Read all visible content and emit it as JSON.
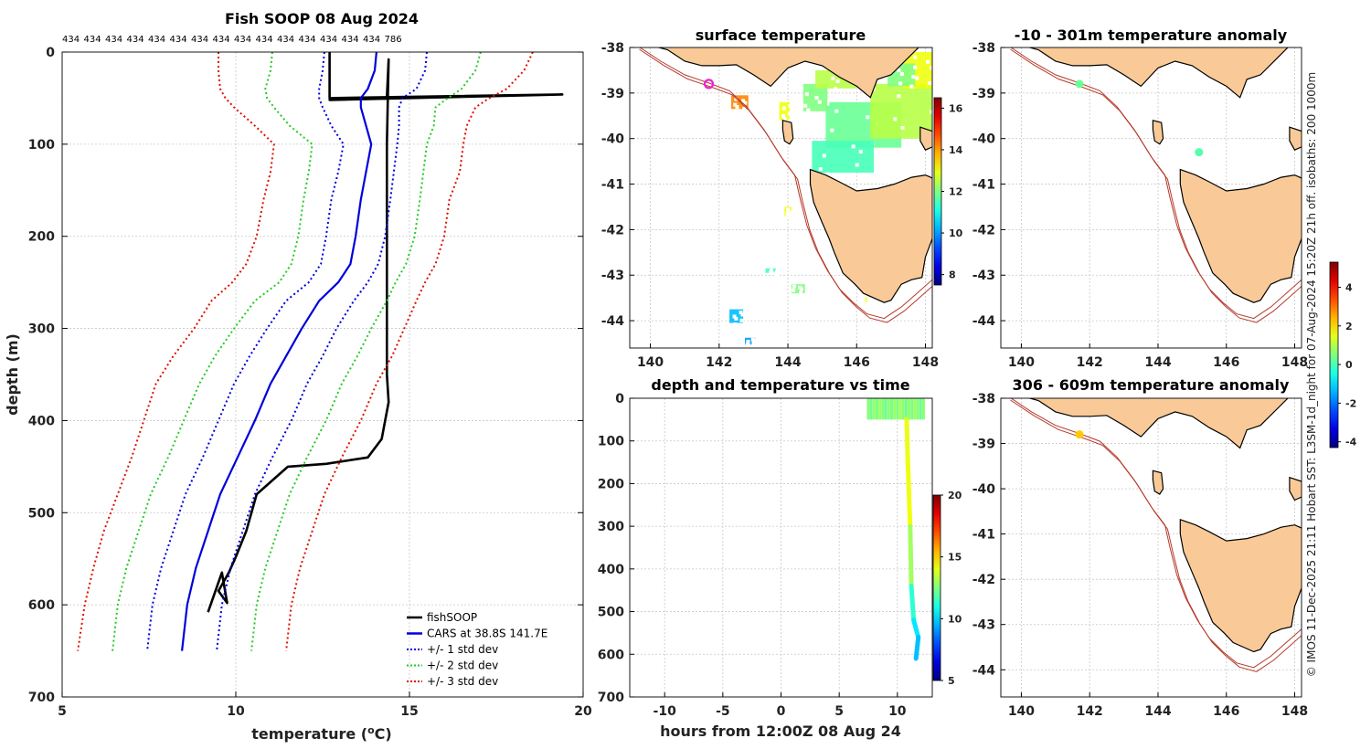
{
  "figure": {
    "credit": "© IMOS 11-Dec-2025 21:11 Hobart SST: L3SM-1d_night for 07-Aug-2024 15:20Z 21h off. isobaths: 200  1000m"
  },
  "colors": {
    "fishSOOP": "#000000",
    "cars": "#0000dd",
    "std1": "#0000dd",
    "std2": "#22cc22",
    "std3": "#dd1100",
    "land": "#f9ca97",
    "isobath": "#b53a2c"
  },
  "chart_data": [
    {
      "id": "profile",
      "type": "line",
      "title": "Fish SOOP 08 Aug 2024",
      "xlabel": "temperature (°C)",
      "xlabel_prefix": "temperature (",
      "xlabel_sup": "o",
      "xlabel_suffix": "C)",
      "ylabel": "depth (m)",
      "xlim": [
        5,
        20
      ],
      "ylim": [
        0,
        700
      ],
      "y_reversed": true,
      "xticks": [
        "5",
        "10",
        "15",
        "20"
      ],
      "yticks": [
        "0",
        "100",
        "200",
        "300",
        "400",
        "500",
        "600",
        "700"
      ],
      "top_counts": [
        "434",
        "434",
        "434",
        "434",
        "434",
        "434",
        "434",
        "434",
        "434",
        "434",
        "434",
        "434",
        "434",
        "434",
        "434",
        "786"
      ],
      "legend": [
        "fishSOOP",
        "CARS at 38.8S 141.7E",
        "+/- 1 std dev",
        "+/- 2 std dev",
        "+/- 3 std dev"
      ],
      "series": [
        {
          "name": "fishSOOP",
          "points": [
            [
              12.7,
              0
            ],
            [
              12.7,
              50
            ],
            [
              19.4,
              46
            ],
            [
              12.7,
              52
            ],
            [
              14.35,
              49
            ],
            [
              14.4,
              8
            ],
            [
              14.35,
              100
            ],
            [
              14.35,
              200
            ],
            [
              14.35,
              300
            ],
            [
              14.35,
              350
            ],
            [
              14.4,
              380
            ],
            [
              14.3,
              400
            ],
            [
              14.2,
              420
            ],
            [
              13.8,
              440
            ],
            [
              12.6,
              447
            ],
            [
              11.5,
              450
            ],
            [
              10.6,
              480
            ],
            [
              10.3,
              520
            ],
            [
              10.0,
              548
            ],
            [
              9.8,
              565
            ],
            [
              9.5,
              585
            ],
            [
              9.75,
              598
            ],
            [
              9.6,
              565
            ],
            [
              9.2,
              608
            ]
          ]
        },
        {
          "name": "CARS",
          "depth": [
            0,
            20,
            40,
            50,
            60,
            80,
            100,
            130,
            160,
            200,
            230,
            250,
            270,
            300,
            330,
            360,
            400,
            440,
            480,
            520,
            560,
            600,
            650
          ],
          "values": [
            14.05,
            14.0,
            13.8,
            13.6,
            13.6,
            13.75,
            13.9,
            13.75,
            13.6,
            13.45,
            13.3,
            12.95,
            12.4,
            11.9,
            11.45,
            11.0,
            10.55,
            10.05,
            9.55,
            9.2,
            8.85,
            8.6,
            8.45
          ]
        },
        {
          "name": "+1 std",
          "depth": [
            0,
            20,
            40,
            50,
            60,
            80,
            100,
            130,
            160,
            200,
            230,
            250,
            270,
            300,
            330,
            360,
            400,
            440,
            480,
            520,
            560,
            600,
            650
          ],
          "values": [
            15.5,
            15.45,
            15.2,
            14.8,
            14.7,
            14.7,
            14.65,
            14.55,
            14.45,
            14.3,
            14.1,
            13.8,
            13.4,
            12.9,
            12.5,
            12.05,
            11.6,
            11.05,
            10.55,
            10.2,
            9.85,
            9.6,
            9.45
          ]
        },
        {
          "name": "-1 std",
          "depth": [
            0,
            20,
            40,
            50,
            60,
            80,
            100,
            130,
            160,
            200,
            230,
            250,
            270,
            300,
            330,
            360,
            400,
            440,
            480,
            520,
            560,
            600,
            650
          ],
          "values": [
            12.55,
            12.5,
            12.4,
            12.4,
            12.5,
            12.75,
            13.1,
            12.95,
            12.75,
            12.6,
            12.45,
            12.1,
            11.45,
            10.9,
            10.4,
            9.95,
            9.5,
            9.05,
            8.55,
            8.2,
            7.85,
            7.6,
            7.45
          ]
        },
        {
          "name": "+2 std",
          "depth": [
            0,
            20,
            40,
            50,
            60,
            80,
            100,
            130,
            160,
            200,
            230,
            250,
            270,
            300,
            330,
            360,
            400,
            440,
            480,
            520,
            560,
            600,
            650
          ],
          "values": [
            17.05,
            16.9,
            16.5,
            16.1,
            15.75,
            15.7,
            15.5,
            15.4,
            15.3,
            15.15,
            14.9,
            14.6,
            14.35,
            13.9,
            13.5,
            13.05,
            12.6,
            12.05,
            11.55,
            11.2,
            10.85,
            10.6,
            10.45
          ]
        },
        {
          "name": "-2 std",
          "depth": [
            0,
            20,
            40,
            50,
            60,
            80,
            100,
            130,
            160,
            200,
            230,
            250,
            270,
            300,
            330,
            360,
            400,
            440,
            480,
            520,
            560,
            600,
            650
          ],
          "values": [
            11.05,
            11.0,
            10.85,
            10.9,
            11.1,
            11.55,
            12.2,
            12.1,
            11.95,
            11.8,
            11.6,
            11.25,
            10.55,
            9.95,
            9.4,
            8.95,
            8.5,
            8.05,
            7.55,
            7.2,
            6.85,
            6.6,
            6.45
          ]
        },
        {
          "name": "+3 std",
          "depth": [
            0,
            20,
            40,
            50,
            60,
            80,
            100,
            130,
            160,
            200,
            230,
            250,
            270,
            300,
            330,
            360,
            400,
            440,
            480,
            520,
            560,
            600,
            650
          ],
          "values": [
            18.55,
            18.3,
            17.8,
            17.3,
            16.9,
            16.65,
            16.55,
            16.45,
            16.15,
            16.0,
            15.75,
            15.45,
            15.2,
            14.85,
            14.5,
            14.05,
            13.6,
            13.05,
            12.55,
            12.2,
            11.85,
            11.6,
            11.45
          ]
        },
        {
          "name": "-3 std",
          "depth": [
            0,
            20,
            40,
            50,
            60,
            80,
            100,
            130,
            160,
            200,
            230,
            250,
            270,
            300,
            330,
            360,
            400,
            440,
            480,
            520,
            560,
            600,
            650
          ],
          "values": [
            9.5,
            9.5,
            9.55,
            9.7,
            9.95,
            10.55,
            11.1,
            11.0,
            10.8,
            10.6,
            10.3,
            9.9,
            9.3,
            8.8,
            8.2,
            7.7,
            7.35,
            7.0,
            6.6,
            6.2,
            5.9,
            5.65,
            5.45
          ]
        }
      ]
    },
    {
      "id": "sst_map",
      "type": "heatmap",
      "title": "surface temperature",
      "xlim": [
        139.4,
        148.2
      ],
      "ylim": [
        -44.6,
        -38
      ],
      "xticks": [
        "140",
        "142",
        "144",
        "146",
        "148"
      ],
      "yticks": [
        "-38",
        "-39",
        "-40",
        "-41",
        "-42",
        "-43",
        "-44"
      ],
      "colorbar": {
        "min": 7.5,
        "max": 16.5,
        "ticks": [
          "16",
          "14",
          "12",
          "10",
          "8"
        ]
      },
      "marker": {
        "lon": 141.7,
        "lat": -38.8,
        "color": "#ee22cc"
      }
    },
    {
      "id": "depth_time",
      "type": "scatter",
      "title": "depth and temperature vs time",
      "xlabel": "hours from 12:00Z 08 Aug 24",
      "xlim": [
        -13,
        13
      ],
      "ylim": [
        0,
        700
      ],
      "xticks": [
        "-10",
        "-5",
        "0",
        "5",
        "10"
      ],
      "yticks": [
        "0",
        "100",
        "200",
        "300",
        "400",
        "500",
        "600",
        "700"
      ],
      "colorbar": {
        "min": 5,
        "max": 20,
        "ticks": [
          "20",
          "15",
          "10",
          "5"
        ]
      },
      "segments": [
        {
          "name": "surface tows",
          "hours": [
            7.5,
            12.4
          ],
          "depth": [
            0,
            50
          ],
          "temp": 12.2
        },
        {
          "name": "deep cast",
          "points": [
            [
              10.8,
              50,
              13.8
            ],
            [
              10.9,
              150,
              14.3
            ],
            [
              11.1,
              300,
              14.0
            ],
            [
              11.2,
              440,
              12.0
            ],
            [
              11.4,
              520,
              10.6
            ],
            [
              11.8,
              560,
              10.0
            ],
            [
              11.6,
              610,
              9.4
            ]
          ]
        }
      ]
    },
    {
      "id": "anom_shallow",
      "type": "scatter",
      "title": "-10 - 301m temperature anomaly",
      "xlim": [
        139.4,
        148.2
      ],
      "ylim": [
        -44.6,
        -38
      ],
      "xticks": [
        "140",
        "142",
        "144",
        "146",
        "148"
      ],
      "yticks": [
        "-38",
        "-39",
        "-40",
        "-41",
        "-42",
        "-43",
        "-44"
      ],
      "points": [
        {
          "lon": 141.7,
          "lat": -38.8,
          "anom": 0.3
        },
        {
          "lon": 145.2,
          "lat": -40.3,
          "anom": 0.1
        }
      ]
    },
    {
      "id": "anom_deep",
      "type": "scatter",
      "title": "306 - 609m temperature anomaly",
      "xlim": [
        139.4,
        148.2
      ],
      "ylim": [
        -44.6,
        -38
      ],
      "xticks": [
        "140",
        "142",
        "144",
        "146",
        "148"
      ],
      "yticks": [
        "-38",
        "-39",
        "-40",
        "-41",
        "-42",
        "-43",
        "-44"
      ],
      "points": [
        {
          "lon": 141.7,
          "lat": -38.8,
          "anom": 2.2
        }
      ],
      "colorbar": {
        "min": -4.3,
        "max": 5.3,
        "ticks": [
          "4",
          "2",
          "0",
          "-2",
          "-4"
        ]
      }
    }
  ]
}
